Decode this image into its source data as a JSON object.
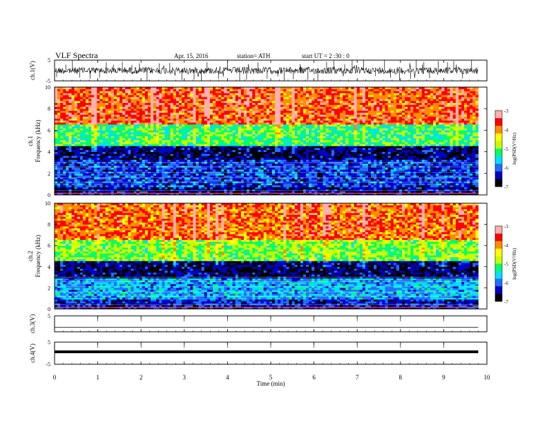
{
  "header": {
    "title": "VLF  Spectra",
    "date": "Apr. 15,  2016",
    "station": "station= ATH",
    "start": "start  UT  =   2  :30 : 0"
  },
  "chart_data": [
    {
      "type": "line",
      "panel": "ch1-waveform",
      "ylabel": "ch.1(V)",
      "ylim": [
        -5,
        5
      ],
      "yticks": [
        "5",
        "-5"
      ],
      "x_range_min": [
        0,
        9.8
      ],
      "baseline": 0
    },
    {
      "type": "heatmap",
      "panel": "ch1-spectrogram",
      "ylabel": "ch.1\nFrequency (kHz)",
      "ylabel_line1": "ch.1",
      "ylabel_line2": "Frequency  (kHz)",
      "ylim": [
        0,
        10
      ],
      "yticks": [
        "0",
        "2",
        "4",
        "6",
        "8",
        "10"
      ],
      "colorbar": {
        "label": "log(PSD(V²/Hz)",
        "ticks": [
          "-3",
          "-4",
          "-5",
          "-6",
          "-7"
        ],
        "range": [
          -7,
          -3
        ]
      },
      "bands_khz": [
        {
          "from": 0,
          "to": 0.8,
          "level": -6.5
        },
        {
          "from": 0.8,
          "to": 3.2,
          "level": -6.2
        },
        {
          "from": 3.2,
          "to": 4.6,
          "level": -6.6
        },
        {
          "from": 4.6,
          "to": 6.5,
          "level": -5.2
        },
        {
          "from": 6.5,
          "to": 10,
          "level": -3.8
        }
      ]
    },
    {
      "type": "heatmap",
      "panel": "ch2-spectrogram",
      "ylabel_line1": "ch.2",
      "ylabel_line2": "Frequency  (kHz)",
      "ylim": [
        0,
        10
      ],
      "yticks": [
        "0",
        "2",
        "4",
        "6",
        "8",
        "10"
      ],
      "colorbar": {
        "label": "log(PSD(V²/Hz)",
        "ticks": [
          "-3",
          "-4",
          "-5",
          "-6",
          "-7"
        ],
        "range": [
          -7,
          -3
        ]
      },
      "bands_khz": [
        {
          "from": 0,
          "to": 1.0,
          "level": -6.3
        },
        {
          "from": 1.0,
          "to": 3.0,
          "level": -5.8
        },
        {
          "from": 3.0,
          "to": 4.5,
          "level": -6.6
        },
        {
          "from": 4.5,
          "to": 6.5,
          "level": -5.0
        },
        {
          "from": 6.5,
          "to": 10,
          "level": -3.9
        }
      ]
    },
    {
      "type": "line",
      "panel": "ch3-waveform",
      "ylabel": "ch.3(V)",
      "ylim": [
        -5,
        5
      ],
      "yticks": [
        "5"
      ],
      "baseline": 0
    },
    {
      "type": "line",
      "panel": "ch4-waveform",
      "ylabel": "ch.4(V)",
      "ylim": [
        -5,
        5
      ],
      "yticks": [
        "5",
        "-5"
      ],
      "baseline": 0
    }
  ],
  "x_axis": {
    "label": "Time  (min)",
    "range": [
      0,
      10
    ],
    "ticks": [
      "0",
      "1",
      "2",
      "3",
      "4",
      "5",
      "6",
      "7",
      "8",
      "9",
      "10"
    ]
  },
  "colors": {
    "frame": "#000000",
    "colormap": [
      "#000000",
      "#0000c8",
      "#1e6eff",
      "#00e0ff",
      "#00ff66",
      "#c8ff00",
      "#ffff00",
      "#ff8c00",
      "#ff0000",
      "#ffb0b0"
    ]
  }
}
